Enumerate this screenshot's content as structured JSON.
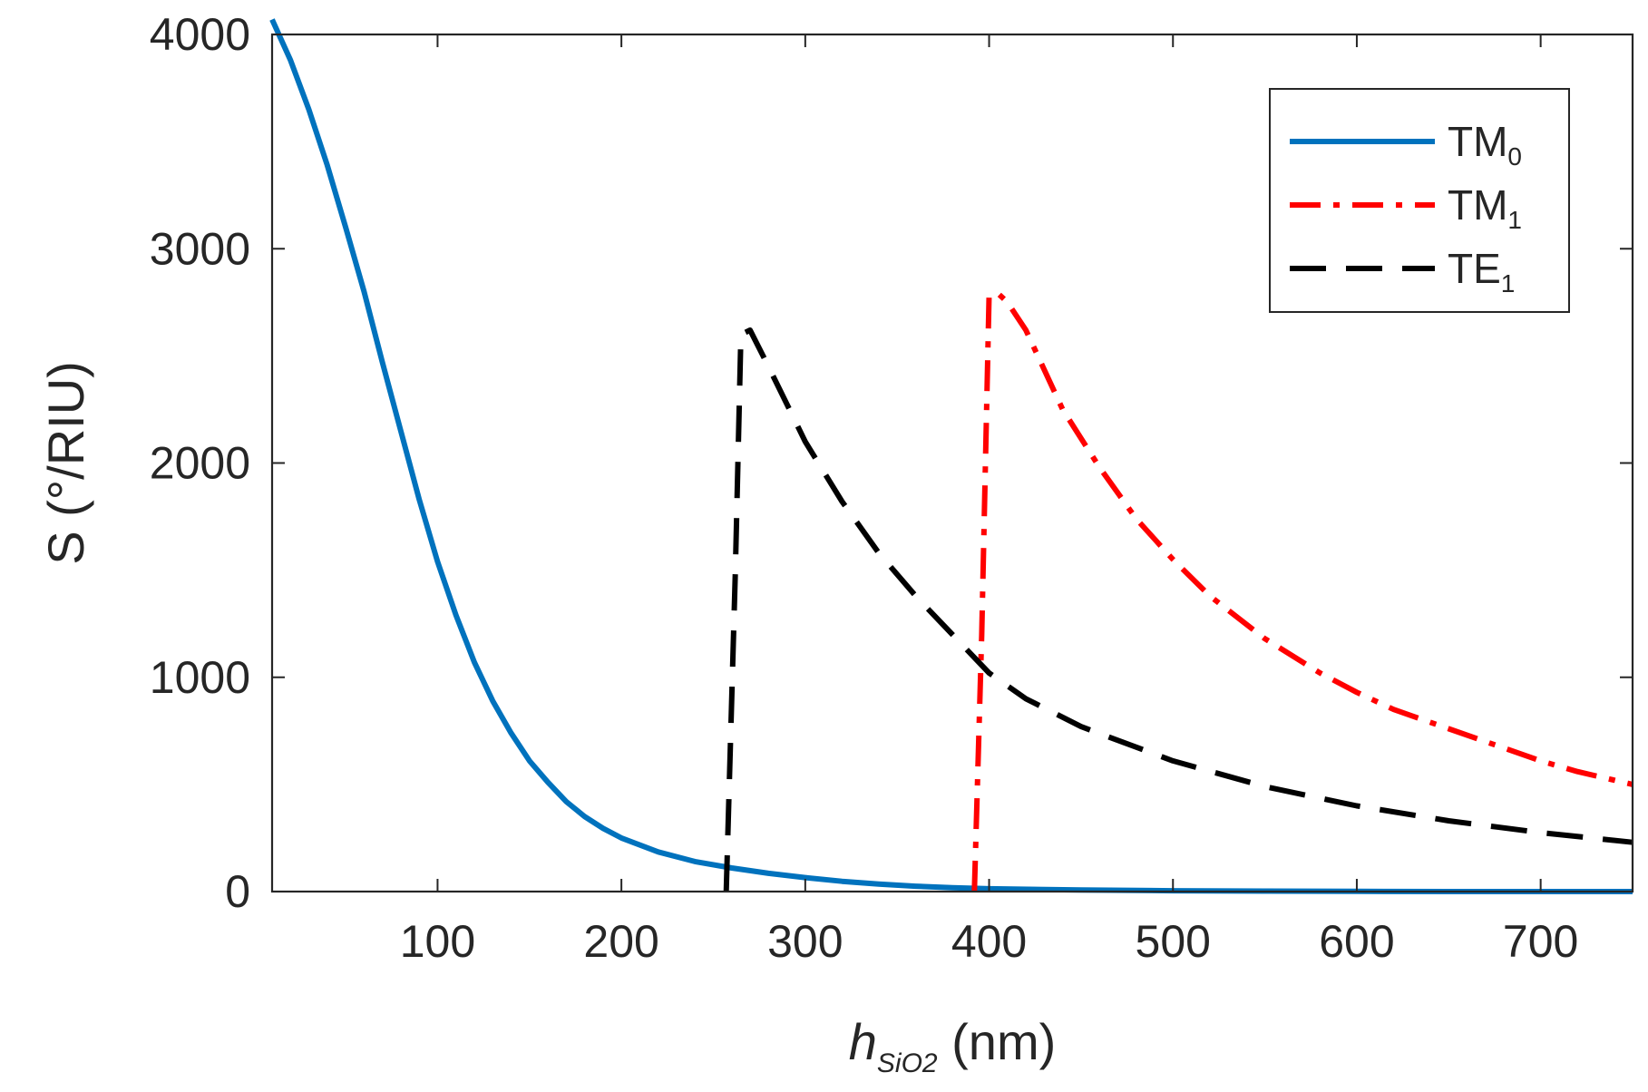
{
  "chart_data": {
    "type": "line",
    "title": "",
    "xlabel": {
      "main": "h",
      "subscript": "SiO2",
      "unit": "(nm)"
    },
    "ylabel": "S (°/RIU)",
    "xlim": [
      10,
      750
    ],
    "ylim": [
      0,
      4000
    ],
    "xticks": [
      100,
      200,
      300,
      400,
      500,
      600,
      700
    ],
    "yticks": [
      0,
      1000,
      2000,
      3000,
      4000
    ],
    "grid": false,
    "legend_position": "top-right",
    "series": [
      {
        "name": "TM",
        "subscript": "0",
        "color": "#0072BD",
        "style": "solid",
        "x": [
          10,
          20,
          30,
          40,
          50,
          60,
          70,
          80,
          90,
          100,
          110,
          120,
          130,
          140,
          150,
          160,
          170,
          180,
          190,
          200,
          220,
          240,
          260,
          280,
          300,
          320,
          340,
          360,
          380,
          400,
          450,
          500,
          550,
          600,
          650,
          700,
          750
        ],
        "y": [
          4070,
          3880,
          3650,
          3390,
          3100,
          2800,
          2470,
          2150,
          1830,
          1540,
          1290,
          1070,
          890,
          740,
          610,
          510,
          420,
          350,
          295,
          250,
          185,
          140,
          110,
          85,
          65,
          48,
          35,
          25,
          18,
          13,
          7,
          4,
          2,
          1,
          0,
          0,
          0
        ]
      },
      {
        "name": "TM",
        "subscript": "1",
        "color": "#FF0000",
        "style": "dashdot",
        "x": [
          392,
          396,
          400,
          405,
          410,
          420,
          440,
          460,
          480,
          500,
          520,
          550,
          580,
          600,
          620,
          650,
          680,
          700,
          720,
          750
        ],
        "y": [
          0,
          1200,
          2780,
          2790,
          2750,
          2620,
          2250,
          1980,
          1740,
          1550,
          1380,
          1180,
          1020,
          930,
          850,
          760,
          670,
          610,
          560,
          500
        ]
      },
      {
        "name": "TE",
        "subscript": "1",
        "color": "#000000",
        "style": "dashed",
        "x": [
          257,
          262,
          265,
          270,
          280,
          300,
          320,
          340,
          360,
          380,
          400,
          420,
          450,
          500,
          550,
          600,
          650,
          700,
          750
        ],
        "y": [
          0,
          1500,
          2600,
          2620,
          2450,
          2100,
          1820,
          1580,
          1380,
          1200,
          1020,
          900,
          770,
          610,
          490,
          400,
          330,
          275,
          230
        ]
      }
    ]
  }
}
